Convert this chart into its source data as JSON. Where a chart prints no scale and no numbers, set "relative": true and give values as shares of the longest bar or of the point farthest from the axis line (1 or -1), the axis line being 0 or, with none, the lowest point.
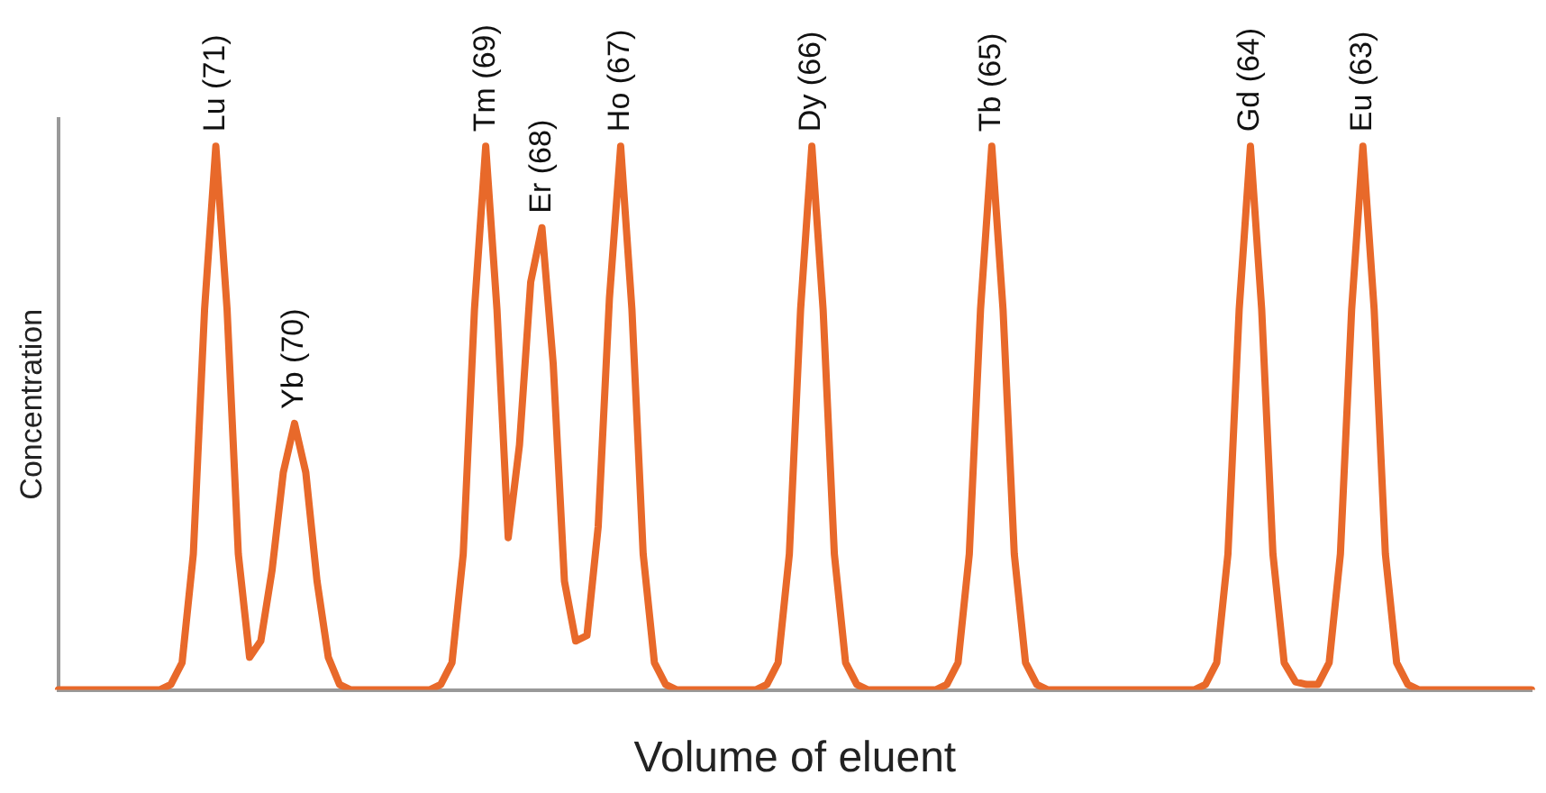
{
  "chart_data": {
    "type": "line",
    "xlabel": "Volume of eluent",
    "ylabel": "Concentration",
    "relative": true,
    "grid": false,
    "legend": false,
    "marker": "none",
    "line_style": "solid",
    "categories": [
      null,
      null,
      null,
      null,
      null,
      null,
      null,
      null,
      null,
      null,
      null,
      null,
      null,
      null,
      null,
      null,
      null,
      null,
      null,
      null,
      null,
      null,
      null,
      null,
      null,
      null,
      null,
      null,
      null,
      null,
      null,
      null,
      null,
      null,
      null,
      null,
      null,
      null,
      null,
      null,
      null,
      null,
      null,
      null,
      null,
      null,
      null,
      null,
      null,
      null,
      null,
      null,
      null,
      null,
      null,
      null,
      null,
      null,
      null,
      null,
      null,
      null,
      null,
      null,
      null,
      null,
      null,
      null,
      null,
      null,
      null,
      null,
      null,
      null,
      null,
      null,
      null,
      null,
      null,
      null,
      null,
      null,
      null,
      null,
      null,
      null,
      null,
      null,
      null,
      null,
      null,
      null,
      null,
      null,
      null,
      null,
      null,
      null,
      null,
      null,
      null,
      null,
      null,
      null,
      null,
      null,
      null,
      null,
      null,
      null,
      null,
      null,
      null,
      null,
      null,
      null,
      null,
      null,
      null,
      null,
      null,
      null,
      null,
      null,
      null,
      null,
      null,
      null,
      null,
      null,
      null,
      null
    ],
    "series": [
      {
        "color": "#e8692a",
        "values": [
          0,
          0,
          0,
          0,
          0,
          0,
          0,
          0,
          0,
          0,
          0.01,
          0.05,
          0.25,
          0.7,
          1,
          0.7,
          0.25,
          0.06,
          0.09,
          0.22,
          0.4,
          0.49,
          0.4,
          0.2,
          0.06,
          0.01,
          0,
          0,
          0,
          0,
          0,
          0,
          0,
          0,
          0.01,
          0.05,
          0.25,
          0.7,
          1,
          0.7,
          0.28,
          0.45,
          0.75,
          0.85,
          0.6,
          0.2,
          0.09,
          0.1,
          0.3,
          0.72,
          1,
          0.7,
          0.25,
          0.05,
          0.01,
          0,
          0,
          0,
          0,
          0,
          0,
          0,
          0,
          0.01,
          0.05,
          0.25,
          0.7,
          1,
          0.7,
          0.25,
          0.05,
          0.01,
          0,
          0,
          0,
          0,
          0,
          0,
          0,
          0.01,
          0.05,
          0.25,
          0.7,
          1,
          0.7,
          0.25,
          0.05,
          0.01,
          0,
          0,
          0,
          0,
          0,
          0,
          0,
          0,
          0,
          0,
          0,
          0,
          0,
          0,
          0.01,
          0.05,
          0.25,
          0.7,
          1,
          0.7,
          0.25,
          0.05,
          0.015,
          0.01,
          0.01,
          0.05,
          0.25,
          0.7,
          1,
          0.7,
          0.25,
          0.05,
          0.01,
          0,
          0,
          0,
          0,
          0,
          0,
          0,
          0,
          0,
          0,
          0
        ]
      }
    ],
    "annotations": [
      "Lu (71)",
      "Yb (70)",
      "Tm (69)",
      "Er (68)",
      "Ho (67)",
      "Dy (66)",
      "Tb (65)",
      "Gd (64)",
      "Eu (63)"
    ]
  }
}
